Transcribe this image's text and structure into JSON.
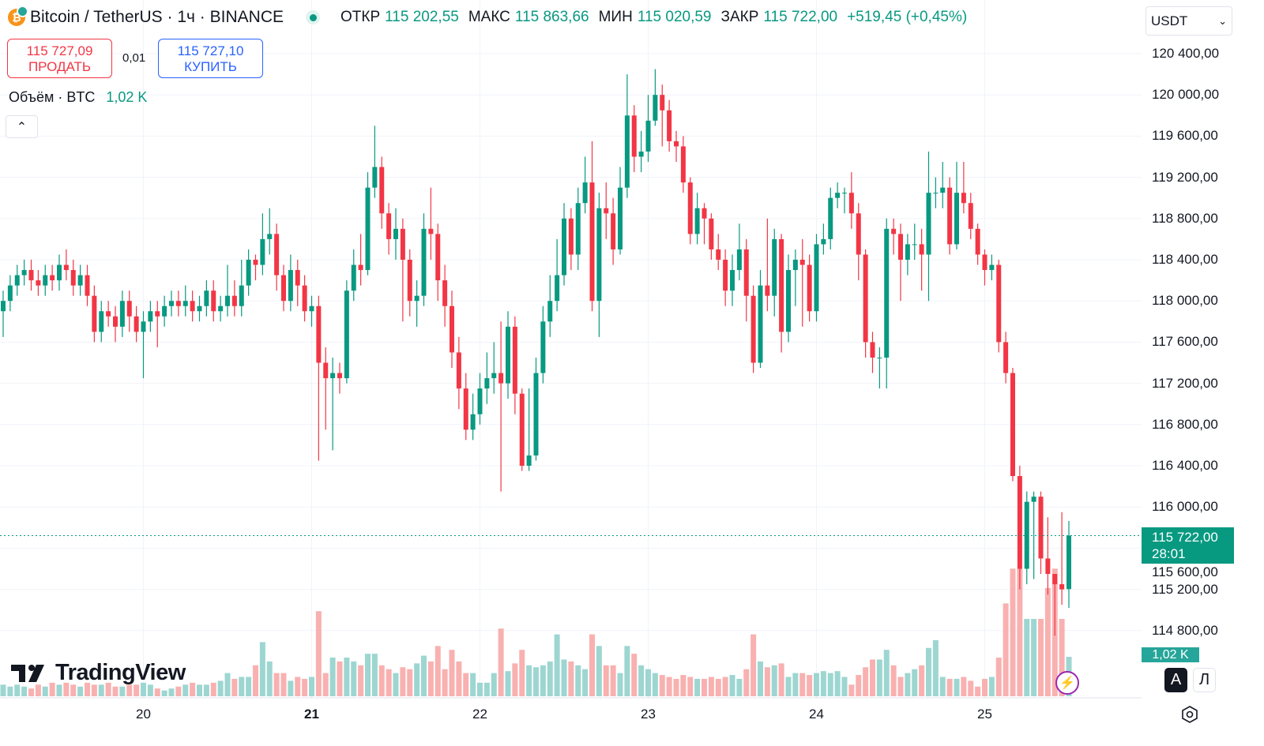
{
  "header": {
    "symbol": "Bitcoin / TetherUS · 1ч · BINANCE",
    "open_label": "ОТКР",
    "open": "115 202,55",
    "high_label": "МАКС",
    "high": "115 863,66",
    "low_label": "МИН",
    "low": "115 020,59",
    "close_label": "ЗАКР",
    "close": "115 722,00",
    "change": "+519,45 (+0,45%)"
  },
  "trade": {
    "sell_price": "115 727,09",
    "sell_label": "ПРОДАТЬ",
    "spread": "0,01",
    "buy_price": "115 727,10",
    "buy_label": "КУПИТЬ"
  },
  "volume_legend": {
    "label": "Объём · BTC",
    "value": "1,02 K"
  },
  "currency_select": {
    "value": "USDT"
  },
  "current_price": {
    "price": "115 722,00",
    "countdown": "28:01"
  },
  "volume_badge": "1,02 K",
  "scale_buttons": {
    "auto": "A",
    "log": "Л"
  },
  "logo": "TradingView",
  "colors": {
    "up": "#089981",
    "down": "#f23645",
    "vol_up": "#92d2cc",
    "vol_down": "#f7a9a7"
  },
  "icons": {
    "symbol": "bitcoin-icon",
    "market_status": "dot-icon",
    "collapse": "chevron-up-icon",
    "select": "chevron-down-icon",
    "alert": "lightning-icon",
    "settings": "gear-icon"
  },
  "chart_data": {
    "type": "candlestick",
    "interval": "1ч",
    "y_ticks": [
      "120 400,00",
      "120 000,00",
      "119 600,00",
      "119 200,00",
      "118 800,00",
      "118 400,00",
      "118 000,00",
      "117 600,00",
      "117 200,00",
      "116 800,00",
      "116 400,00",
      "116 000,00",
      "115 600,00",
      "115 200,00",
      "114 800,00"
    ],
    "ylim": [
      114600,
      120600
    ],
    "x_ticks": [
      {
        "label": "20",
        "bold": false
      },
      {
        "label": "21",
        "bold": true
      },
      {
        "label": "22",
        "bold": false
      },
      {
        "label": "23",
        "bold": false
      },
      {
        "label": "24",
        "bold": false
      },
      {
        "label": "25",
        "bold": false
      }
    ],
    "open": [
      117900,
      118000,
      118150,
      118250,
      118300,
      118200,
      118150,
      118250,
      118200,
      118350,
      118300,
      118150,
      118250,
      118050,
      117700,
      117900,
      117850,
      117750,
      118000,
      117850,
      117700,
      117800,
      117900,
      117850,
      117950,
      118000,
      117950,
      118000,
      117900,
      117950,
      118100,
      117900,
      117950,
      118050,
      117950,
      118150,
      118400,
      118350,
      118600,
      118650,
      118250,
      118000,
      118300,
      118150,
      117900,
      117950,
      117400,
      117250,
      117300,
      117250,
      118100,
      118350,
      118300,
      119100,
      119300,
      118850,
      118600,
      118700,
      118400,
      118000,
      118050,
      118700,
      118650,
      118200,
      117950,
      117500,
      117150,
      116750,
      116900,
      117150,
      117250,
      117300,
      117200,
      117750,
      117100,
      116400,
      116500,
      117300,
      117800,
      118000,
      118250,
      118800,
      118450,
      118950,
      119150,
      118000,
      118900,
      118850,
      118500,
      119100,
      119800,
      119400,
      119450,
      119750,
      120000,
      119850,
      119550,
      119500,
      119150,
      118650,
      118900,
      118800,
      118500,
      118400,
      118100,
      118300,
      118500,
      118050,
      117400,
      118150,
      118050,
      118600,
      117700,
      118300,
      118400,
      118350,
      117900,
      118550,
      118600,
      119000,
      119050,
      119050,
      118850,
      118450,
      117600,
      117450,
      117450,
      118700,
      118650,
      118400,
      118550,
      118550,
      118450,
      119050,
      119050,
      119100,
      118550,
      119050,
      118950,
      118700,
      118450,
      118300,
      118350,
      117600,
      117300,
      116300,
      115400,
      116050,
      116100,
      115500,
      115350,
      115250,
      115202.55
    ],
    "high": [
      118100,
      118250,
      118350,
      118400,
      118400,
      118300,
      118350,
      118350,
      118450,
      118500,
      118400,
      118350,
      118350,
      118150,
      118000,
      118000,
      117950,
      118100,
      118100,
      117950,
      117900,
      118000,
      118000,
      118050,
      118100,
      118100,
      118150,
      118100,
      118050,
      118200,
      118200,
      118050,
      118350,
      118200,
      118400,
      118500,
      118450,
      118850,
      118900,
      118750,
      118350,
      118450,
      118400,
      118250,
      118050,
      118050,
      117550,
      117450,
      117400,
      118200,
      118500,
      118650,
      119250,
      119700,
      119400,
      118950,
      118900,
      118800,
      118500,
      118200,
      118850,
      119100,
      118750,
      118350,
      118100,
      117650,
      117300,
      117100,
      117300,
      117500,
      117600,
      117800,
      117900,
      117850,
      117150,
      117150,
      117450,
      117950,
      118250,
      118600,
      118950,
      118900,
      119100,
      119400,
      119550,
      119050,
      119150,
      119000,
      119300,
      120200,
      119900,
      119650,
      120000,
      120250,
      120100,
      119950,
      119650,
      119600,
      119200,
      119050,
      118950,
      118850,
      118650,
      118500,
      118450,
      118750,
      118600,
      118150,
      118300,
      118800,
      118700,
      118650,
      118450,
      118500,
      118600,
      118450,
      118650,
      118750,
      119100,
      119150,
      119100,
      119250,
      118950,
      118500,
      117700,
      117550,
      118800,
      118800,
      118750,
      118650,
      118750,
      118700,
      119450,
      119200,
      119350,
      119200,
      119350,
      119350,
      119050,
      118750,
      118500,
      118450,
      118400,
      117700,
      117350,
      116400,
      116150,
      116150,
      116150,
      115900,
      115350,
      115950,
      115863.66
    ],
    "low": [
      117650,
      117900,
      118050,
      118150,
      118100,
      118050,
      118050,
      118100,
      118100,
      118200,
      118050,
      118050,
      117950,
      117600,
      117600,
      117750,
      117600,
      117650,
      117700,
      117600,
      117250,
      117700,
      117550,
      117750,
      117850,
      117850,
      117850,
      117800,
      117800,
      117850,
      117800,
      117800,
      117850,
      117850,
      117850,
      118050,
      118200,
      118250,
      118450,
      118100,
      117900,
      117900,
      117950,
      117800,
      117750,
      116450,
      116750,
      116550,
      117100,
      117200,
      118000,
      118150,
      118250,
      119000,
      118700,
      118450,
      118400,
      117800,
      117850,
      117750,
      117950,
      118400,
      118000,
      117750,
      117350,
      116950,
      116650,
      116650,
      116800,
      117000,
      117100,
      116150,
      117050,
      116900,
      116350,
      116350,
      116450,
      117200,
      117650,
      117900,
      118150,
      118300,
      118300,
      118850,
      117900,
      117650,
      118600,
      118350,
      118450,
      119000,
      119250,
      119250,
      119350,
      119700,
      119500,
      119450,
      119350,
      119050,
      118550,
      118550,
      118550,
      118400,
      118300,
      117950,
      117950,
      118200,
      117800,
      117300,
      117350,
      117900,
      117850,
      117500,
      117600,
      117950,
      117750,
      117800,
      117800,
      118450,
      118500,
      118900,
      118850,
      118700,
      118200,
      117450,
      117300,
      117150,
      117150,
      118450,
      118000,
      118250,
      118400,
      118100,
      118000,
      118900,
      118900,
      118450,
      118500,
      118850,
      118600,
      118350,
      118150,
      118200,
      117500,
      117200,
      116250,
      115200,
      115250,
      115300,
      115350,
      115150,
      114750,
      115050,
      115020.59
    ],
    "close": [
      118000,
      118150,
      118250,
      118300,
      118200,
      118150,
      118250,
      118200,
      118350,
      118300,
      118150,
      118250,
      118050,
      117700,
      117900,
      117850,
      117750,
      118000,
      117850,
      117700,
      117800,
      117900,
      117850,
      117950,
      118000,
      117950,
      118000,
      117900,
      117950,
      118100,
      117900,
      117950,
      118050,
      117950,
      118150,
      118400,
      118350,
      118600,
      118650,
      118250,
      118000,
      118300,
      118150,
      117900,
      117950,
      117400,
      117250,
      117300,
      117250,
      118100,
      118350,
      118300,
      119100,
      119300,
      118850,
      118600,
      118700,
      118400,
      118000,
      118050,
      118700,
      118650,
      118200,
      117950,
      117500,
      117150,
      116750,
      116900,
      117150,
      117250,
      117300,
      117200,
      117750,
      117100,
      116400,
      116500,
      117300,
      117800,
      118000,
      118250,
      118800,
      118450,
      118950,
      119150,
      118000,
      118900,
      118850,
      118500,
      119100,
      119800,
      119400,
      119450,
      119750,
      120000,
      119850,
      119550,
      119500,
      119150,
      118650,
      118900,
      118800,
      118500,
      118400,
      118100,
      118300,
      118500,
      118050,
      117400,
      118150,
      118050,
      118600,
      117700,
      118300,
      118400,
      118350,
      117900,
      118550,
      118600,
      119000,
      119050,
      119050,
      118850,
      118450,
      117600,
      117450,
      117450,
      118700,
      118650,
      118400,
      118550,
      118550,
      118450,
      119050,
      119050,
      119100,
      118550,
      119050,
      118950,
      118700,
      118450,
      118300,
      118350,
      117600,
      117300,
      116300,
      115400,
      116050,
      116100,
      115500,
      115350,
      115250,
      115200,
      115722
    ],
    "volume_k": [
      0.3,
      0.25,
      0.3,
      0.25,
      0.2,
      0.3,
      0.25,
      0.35,
      0.3,
      0.35,
      0.3,
      0.25,
      0.35,
      0.3,
      0.3,
      0.35,
      0.25,
      0.25,
      0.3,
      0.3,
      0.35,
      0.3,
      0.2,
      0.15,
      0.2,
      0.25,
      0.3,
      0.35,
      0.3,
      0.3,
      0.35,
      0.4,
      0.6,
      0.45,
      0.5,
      0.5,
      0.8,
      1.4,
      0.9,
      0.6,
      0.6,
      0.4,
      0.5,
      0.45,
      0.5,
      2.2,
      0.6,
      1.0,
      0.9,
      1.0,
      0.9,
      0.8,
      1.1,
      1.1,
      0.8,
      0.7,
      0.6,
      0.75,
      0.7,
      0.85,
      1.05,
      0.9,
      1.3,
      0.7,
      1.2,
      0.9,
      0.6,
      0.6,
      0.35,
      0.35,
      0.6,
      1.75,
      0.65,
      0.85,
      1.2,
      0.8,
      0.75,
      0.8,
      0.9,
      1.6,
      0.95,
      0.9,
      0.8,
      0.7,
      1.6,
      1.3,
      0.8,
      0.8,
      0.6,
      1.3,
      1.1,
      0.8,
      0.7,
      0.6,
      0.55,
      0.5,
      0.45,
      0.55,
      0.5,
      0.45,
      0.45,
      0.5,
      0.45,
      0.5,
      0.55,
      0.45,
      0.7,
      1.6,
      0.9,
      0.75,
      0.8,
      0.85,
      0.5,
      0.6,
      0.6,
      0.55,
      0.6,
      0.65,
      0.6,
      0.65,
      0.5,
      0.3,
      0.55,
      0.75,
      0.95,
      0.95,
      1.2,
      0.8,
      0.5,
      0.6,
      0.7,
      0.8,
      1.25,
      1.45,
      0.5,
      0.45,
      0.45,
      0.5,
      0.4,
      0.25,
      0.45,
      0.5,
      1.0,
      2.4,
      3.3,
      3.3,
      2.0,
      2.0,
      2.0,
      2.8,
      3.3,
      2.0,
      1.02
    ]
  }
}
